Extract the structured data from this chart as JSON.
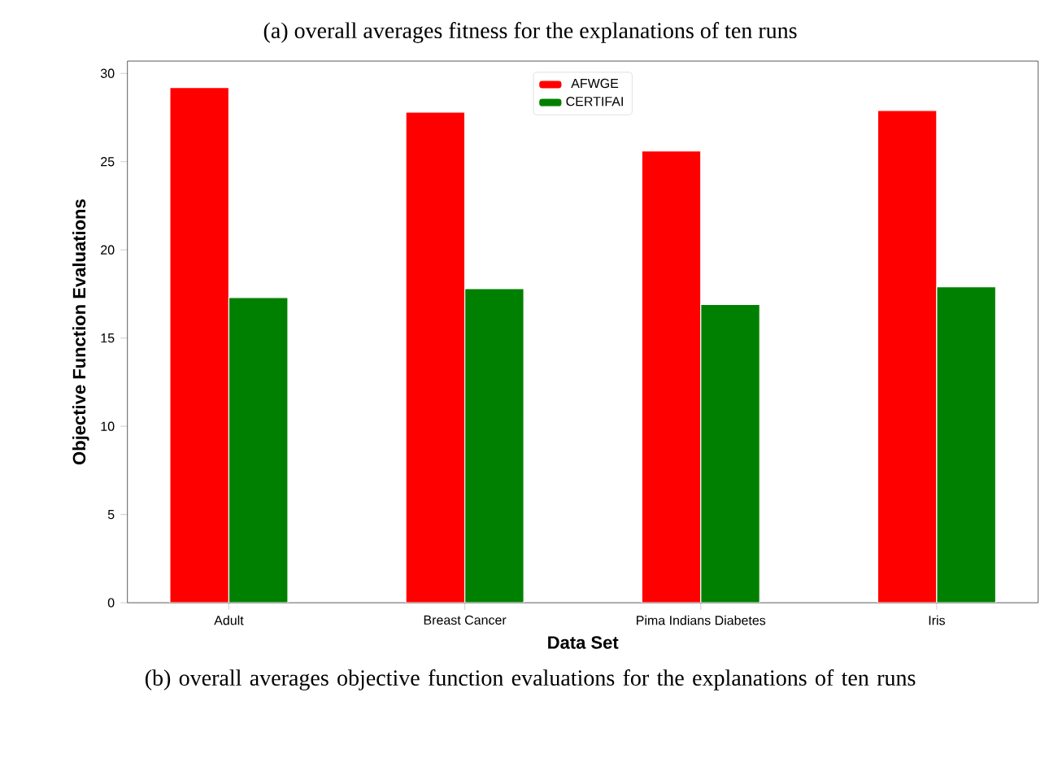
{
  "chart_data": {
    "type": "bar",
    "title": "(a) overall averages fitness for the explanations of ten runs",
    "xlabel": "Data Set",
    "ylabel": "Objective Function Evaluations",
    "categories": [
      "Adult",
      "Breast Cancer",
      "Pima Indians Diabetes",
      "Iris"
    ],
    "series": [
      {
        "name": "AFWGE",
        "color": "#ff0000",
        "values": [
          29.2,
          27.8,
          25.6,
          27.9
        ]
      },
      {
        "name": "CERTIFAI",
        "color": "#008000",
        "values": [
          17.3,
          17.8,
          16.9,
          17.9
        ]
      }
    ],
    "ylim": [
      0,
      30.7
    ],
    "yticks": [
      0,
      5,
      10,
      15,
      20,
      25,
      30
    ],
    "legend": "top",
    "annotations": [
      "(b) overall averages objective function evaluations for the explanations of ten runs"
    ]
  }
}
